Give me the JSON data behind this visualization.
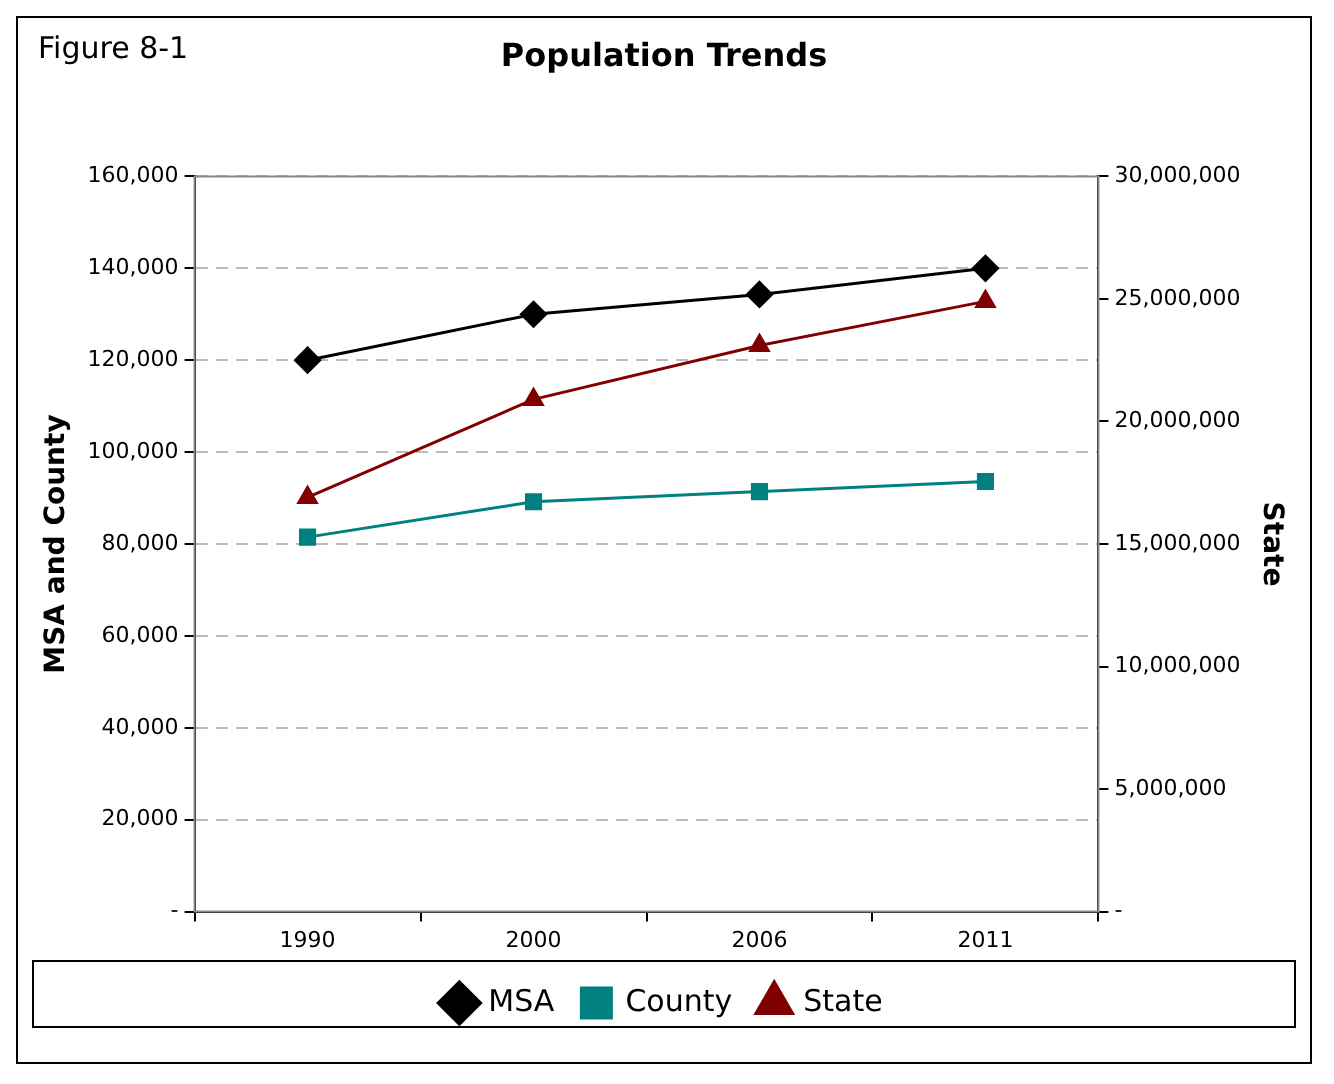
{
  "chart_data": {
    "type": "line",
    "title": "Population Trends",
    "ylabel": "MSA and County",
    "y2label": "State",
    "annotations": [
      "Figure 8-1"
    ],
    "categories": [
      "1990",
      "2000",
      "2006",
      "2011"
    ],
    "series": [
      {
        "name": "MSA",
        "color": "#000000",
        "marker": "diamond",
        "values": [
          120000,
          130000,
          134300,
          140000
        ]
      },
      {
        "name": "County",
        "color": "#008080",
        "marker": "square",
        "values": [
          81500,
          89200,
          91400,
          93600
        ]
      },
      {
        "name": "State",
        "color": "#800000",
        "marker": "triangle",
        "axis": "y2",
        "values": [
          16900000,
          20900000,
          23100000,
          24900000
        ]
      }
    ],
    "ylim": [
      0,
      160000
    ],
    "yticks": [
      {
        "value": 0,
        "label": "-"
      },
      {
        "value": 20000,
        "label": "20,000"
      },
      {
        "value": 40000,
        "label": "40,000"
      },
      {
        "value": 60000,
        "label": "60,000"
      },
      {
        "value": 80000,
        "label": "80,000"
      },
      {
        "value": 100000,
        "label": "100,000"
      },
      {
        "value": 120000,
        "label": "120,000"
      },
      {
        "value": 140000,
        "label": "140,000"
      },
      {
        "value": 160000,
        "label": "160,000"
      }
    ],
    "y2lim": [
      0,
      30000000
    ],
    "y2ticks": [
      {
        "value": 0,
        "label": "-"
      },
      {
        "value": 5000000,
        "label": "5,000,000"
      },
      {
        "value": 10000000,
        "label": "10,000,000"
      },
      {
        "value": 15000000,
        "label": "15,000,000"
      },
      {
        "value": 20000000,
        "label": "20,000,000"
      },
      {
        "value": 25000000,
        "label": "25,000,000"
      },
      {
        "value": 30000000,
        "label": "30,000,000"
      }
    ],
    "grid": "y",
    "legend": "bottom",
    "line_style": "solid"
  }
}
